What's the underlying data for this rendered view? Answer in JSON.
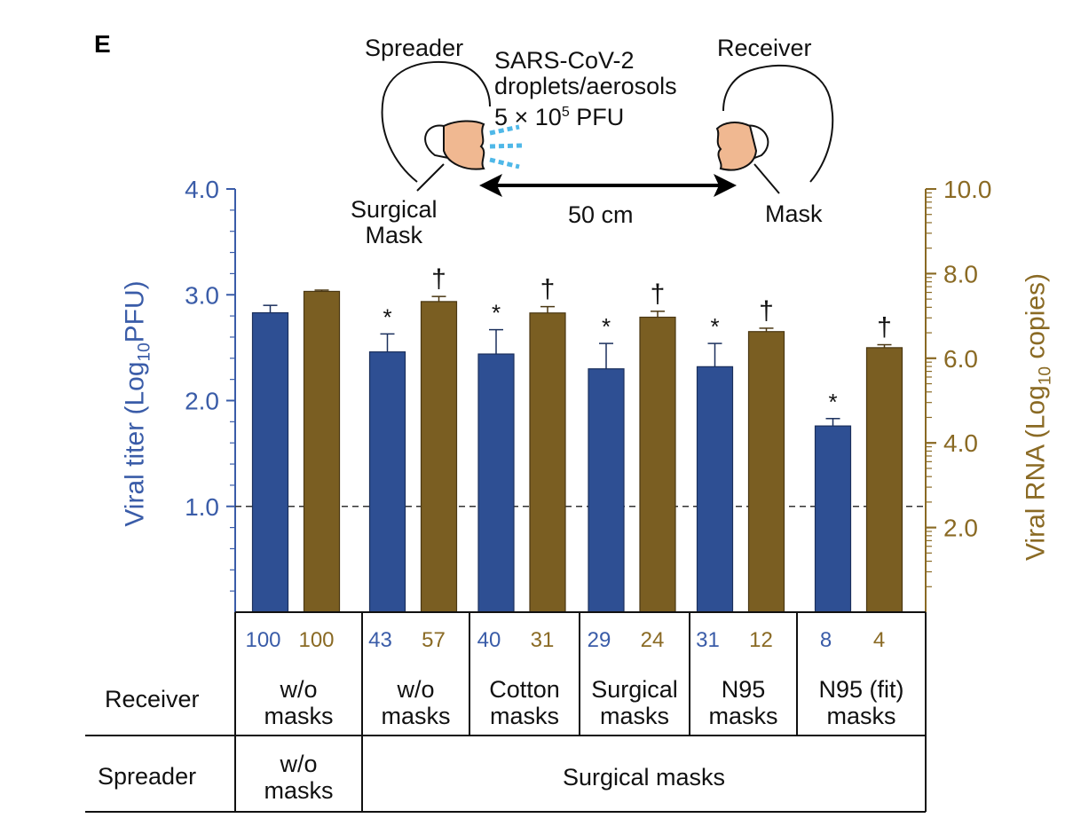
{
  "panel_label": "E",
  "scene": {
    "spreader_label": "Spreader",
    "receiver_label": "Receiver",
    "virus_line1": "SARS-CoV-2",
    "virus_line2": "droplets/aerosols",
    "dose_prefix": "5 × 10",
    "dose_exp": "5",
    "dose_unit": " PFU",
    "spreader_mask_line1": "Surgical",
    "spreader_mask_line2": "Mask",
    "receiver_mask_label": "Mask",
    "distance_label": "50 cm"
  },
  "colors": {
    "titer": "#2e4f93",
    "rna": "#7a5e22",
    "titer_axis": "#3a5ca8",
    "rna_axis": "#8a6a24",
    "droplets": "#4fb8e8",
    "face": "#f0b891"
  },
  "chart_data": {
    "type": "bar",
    "categories": [
      "w/o masks | w/o masks",
      "w/o masks | Surgical masks",
      "Cotton masks | Surgical masks",
      "Surgical masks | Surgical masks",
      "N95 masks | Surgical masks",
      "N95 (fit) masks | Surgical masks"
    ],
    "series": [
      {
        "name": "Viral titer (Log10 PFU)",
        "axis": "left",
        "values": [
          2.83,
          2.46,
          2.44,
          2.3,
          2.32,
          1.76
        ],
        "errors": [
          0.07,
          0.17,
          0.23,
          0.24,
          0.22,
          0.07
        ],
        "markers": [
          "",
          "*",
          "*",
          "*",
          "*",
          "*"
        ],
        "percent": [
          "100",
          "43",
          "40",
          "29",
          "31",
          "8"
        ]
      },
      {
        "name": "Viral RNA (Log10 copies)",
        "axis": "right",
        "values": [
          7.58,
          7.34,
          7.07,
          6.97,
          6.63,
          6.25
        ],
        "errors": [
          0.03,
          0.12,
          0.15,
          0.14,
          0.08,
          0.07
        ],
        "markers": [
          "",
          "†",
          "†",
          "†",
          "†",
          "†"
        ],
        "percent": [
          "100",
          "57",
          "31",
          "24",
          "12",
          "4"
        ]
      }
    ],
    "left_axis": {
      "label_prefix": "Viral titer (Log",
      "label_sub": "10",
      "label_suffix": "PFU)",
      "ylim": [
        0,
        4.0
      ],
      "ticks": [
        "1.0",
        "2.0",
        "3.0",
        "4.0"
      ]
    },
    "right_axis": {
      "label_prefix": "Viral RNA (Log",
      "label_sub": "10",
      "label_suffix": " copies)",
      "ylim": [
        0,
        10.0
      ],
      "ticks": [
        "2.0",
        "4.0",
        "6.0",
        "8.0",
        "10.0"
      ]
    },
    "detection_limit": 1.0,
    "table": {
      "receiver_label": "Receiver",
      "spreader_label": "Spreader",
      "receiver": [
        [
          "w/o",
          "masks"
        ],
        [
          "w/o",
          "masks"
        ],
        [
          "Cotton",
          "masks"
        ],
        [
          "Surgical",
          "masks"
        ],
        [
          "N95",
          "masks"
        ],
        [
          "N95 (fit)",
          "masks"
        ]
      ],
      "spreader_first": [
        "w/o",
        "masks"
      ],
      "spreader_rest": "Surgical masks"
    }
  }
}
